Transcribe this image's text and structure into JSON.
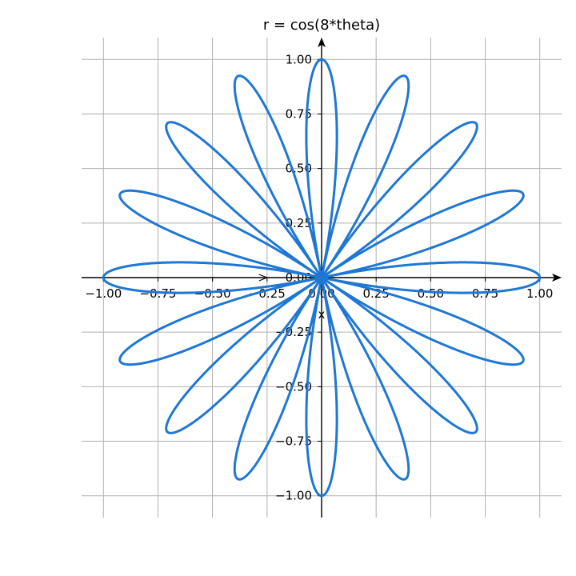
{
  "chart_data": {
    "type": "line",
    "title": "r = cos(8*theta)",
    "xlabel": "x",
    "ylabel": "",
    "xlim": [
      -1.1,
      1.1
    ],
    "ylim": [
      -1.1,
      1.1
    ],
    "xticks": [
      -1.0,
      -0.75,
      -0.5,
      -0.25,
      0.0,
      0.25,
      0.5,
      0.75,
      1.0
    ],
    "yticks": [
      -1.0,
      -0.75,
      -0.5,
      -0.25,
      0.0,
      0.25,
      0.5,
      0.75,
      1.0
    ],
    "xtick_labels": [
      "−1.00",
      "−0.75",
      "−0.50",
      "−0.25",
      "0.00",
      "0.25",
      "0.50",
      "0.75",
      "1.00"
    ],
    "ytick_labels": [
      "−1.00",
      "−0.75",
      "−0.50",
      "−0.25",
      "0.00",
      "0.25",
      "0.50",
      "0.75",
      "1.00"
    ],
    "grid": true,
    "curve": {
      "kind": "polar-rose",
      "equation": "r = cos(8*theta)",
      "k": 8,
      "theta_range": [
        0,
        6.283185307
      ],
      "color": "#1f77d4"
    }
  }
}
